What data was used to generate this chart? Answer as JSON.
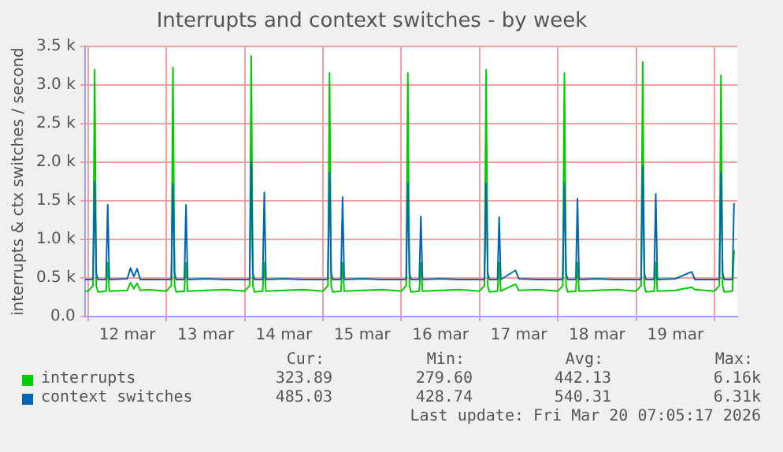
{
  "chart_data": {
    "type": "line",
    "title": "Interrupts and context switches - by week",
    "ylabel": "interrupts & ctx switches / second",
    "x": [
      "2026-03-11T23:00",
      "2026-03-12T00:00",
      "2026-03-12T01:30",
      "2026-03-12T02:00",
      "2026-03-12T02:30",
      "2026-03-12T03:00",
      "2026-03-12T05:30",
      "2026-03-12T06:00",
      "2026-03-12T06:30",
      "2026-03-12T12:00",
      "2026-03-12T13:00",
      "2026-03-12T14:00",
      "2026-03-12T15:00",
      "2026-03-12T16:00",
      "2026-03-12T18:00",
      "2026-03-13T00:00",
      "2026-03-13T01:30",
      "2026-03-13T02:00",
      "2026-03-13T02:30",
      "2026-03-13T03:00",
      "2026-03-13T05:30",
      "2026-03-13T06:00",
      "2026-03-13T06:30",
      "2026-03-13T12:00",
      "2026-03-13T18:00",
      "2026-03-14T00:00",
      "2026-03-14T01:30",
      "2026-03-14T02:00",
      "2026-03-14T02:30",
      "2026-03-14T03:00",
      "2026-03-14T05:30",
      "2026-03-14T06:00",
      "2026-03-14T06:30",
      "2026-03-14T12:00",
      "2026-03-14T18:00",
      "2026-03-15T00:00",
      "2026-03-15T01:30",
      "2026-03-15T02:00",
      "2026-03-15T02:30",
      "2026-03-15T03:00",
      "2026-03-15T05:30",
      "2026-03-15T06:00",
      "2026-03-15T06:30",
      "2026-03-15T12:00",
      "2026-03-15T18:00",
      "2026-03-16T00:00",
      "2026-03-16T01:30",
      "2026-03-16T02:00",
      "2026-03-16T02:30",
      "2026-03-16T03:00",
      "2026-03-16T05:30",
      "2026-03-16T06:00",
      "2026-03-16T06:30",
      "2026-03-16T12:00",
      "2026-03-16T18:00",
      "2026-03-17T00:00",
      "2026-03-17T01:30",
      "2026-03-17T02:00",
      "2026-03-17T02:30",
      "2026-03-17T03:00",
      "2026-03-17T05:30",
      "2026-03-17T06:00",
      "2026-03-17T06:30",
      "2026-03-17T11:00",
      "2026-03-17T12:00",
      "2026-03-17T18:00",
      "2026-03-18T00:00",
      "2026-03-18T01:30",
      "2026-03-18T02:00",
      "2026-03-18T02:30",
      "2026-03-18T03:00",
      "2026-03-18T05:30",
      "2026-03-18T06:00",
      "2026-03-18T06:30",
      "2026-03-18T12:00",
      "2026-03-18T18:00",
      "2026-03-19T00:00",
      "2026-03-19T01:30",
      "2026-03-19T02:00",
      "2026-03-19T02:30",
      "2026-03-19T03:00",
      "2026-03-19T05:30",
      "2026-03-19T06:00",
      "2026-03-19T06:30",
      "2026-03-19T12:00",
      "2026-03-19T17:00",
      "2026-03-19T18:00",
      "2026-03-20T00:00",
      "2026-03-20T01:30",
      "2026-03-20T02:00",
      "2026-03-20T02:30",
      "2026-03-20T03:00",
      "2026-03-20T05:30",
      "2026-03-20T06:00"
    ],
    "series": [
      {
        "name": "interrupts",
        "color": "#00cc00",
        "values": [
          330,
          330,
          400,
          3200,
          400,
          320,
          330,
          700,
          330,
          340,
          440,
          360,
          430,
          340,
          350,
          330,
          400,
          3230,
          400,
          320,
          330,
          700,
          330,
          340,
          350,
          330,
          400,
          3380,
          400,
          320,
          330,
          700,
          330,
          340,
          350,
          330,
          400,
          3160,
          400,
          320,
          330,
          700,
          330,
          340,
          350,
          330,
          400,
          3160,
          400,
          320,
          330,
          700,
          330,
          340,
          350,
          330,
          400,
          3200,
          400,
          320,
          330,
          700,
          330,
          420,
          340,
          350,
          330,
          400,
          3160,
          400,
          320,
          330,
          700,
          330,
          340,
          350,
          330,
          400,
          3300,
          400,
          320,
          330,
          700,
          330,
          340,
          380,
          350,
          330,
          400,
          3130,
          400,
          320,
          330,
          860
        ]
      },
      {
        "name": "context switches",
        "color": "#0066b3",
        "values": [
          480,
          480,
          480,
          1750,
          560,
          480,
          480,
          1450,
          480,
          490,
          630,
          520,
          620,
          480,
          480,
          480,
          480,
          1720,
          560,
          480,
          480,
          1450,
          480,
          490,
          480,
          480,
          480,
          2000,
          560,
          480,
          480,
          1610,
          480,
          490,
          480,
          480,
          480,
          1870,
          560,
          480,
          480,
          1550,
          480,
          490,
          480,
          480,
          480,
          1730,
          560,
          480,
          480,
          1300,
          480,
          490,
          480,
          480,
          480,
          1730,
          560,
          480,
          480,
          1290,
          480,
          600,
          490,
          480,
          480,
          480,
          1730,
          560,
          480,
          480,
          1530,
          480,
          490,
          480,
          480,
          480,
          1950,
          560,
          480,
          480,
          1590,
          480,
          490,
          580,
          480,
          480,
          480,
          1870,
          560,
          480,
          480,
          1470
        ]
      }
    ],
    "xlim": [
      "2026-03-11T23:00",
      "2026-03-20T07:00"
    ],
    "xticks": [
      {
        "value": "2026-03-12",
        "label": null
      },
      {
        "value": "2026-03-12T12:00",
        "label": "12 mar"
      },
      {
        "value": "2026-03-13",
        "label": null
      },
      {
        "value": "2026-03-13T12:00",
        "label": "13 mar"
      },
      {
        "value": "2026-03-14",
        "label": null
      },
      {
        "value": "2026-03-14T12:00",
        "label": "14 mar"
      },
      {
        "value": "2026-03-15",
        "label": null
      },
      {
        "value": "2026-03-15T12:00",
        "label": "15 mar"
      },
      {
        "value": "2026-03-16",
        "label": null
      },
      {
        "value": "2026-03-16T12:00",
        "label": "16 mar"
      },
      {
        "value": "2026-03-17",
        "label": null
      },
      {
        "value": "2026-03-17T12:00",
        "label": "17 mar"
      },
      {
        "value": "2026-03-18",
        "label": null
      },
      {
        "value": "2026-03-18T12:00",
        "label": "18 mar"
      },
      {
        "value": "2026-03-19",
        "label": null
      },
      {
        "value": "2026-03-19T12:00",
        "label": "19 mar"
      },
      {
        "value": "2026-03-20",
        "label": null
      }
    ],
    "ylim": [
      0,
      3500
    ],
    "yticks": [
      {
        "value": 0,
        "label": "0.0"
      },
      {
        "value": 500,
        "label": "0.5 k"
      },
      {
        "value": 1000,
        "label": "1.0 k"
      },
      {
        "value": 1500,
        "label": "1.5 k"
      },
      {
        "value": 2000,
        "label": "2.0 k"
      },
      {
        "value": 2500,
        "label": "2.5 k"
      },
      {
        "value": 3000,
        "label": "3.0 k"
      },
      {
        "value": 3500,
        "label": "3.5 k"
      }
    ],
    "grid": true,
    "legend": "bottom",
    "marker": "none",
    "line_style": "solid",
    "annotations": [
      "Cur:",
      "Min:",
      "Avg:",
      "Max:",
      "323.89",
      "279.60",
      "442.13",
      "6.16k",
      "485.03",
      "428.74",
      "540.31",
      "6.31k",
      "Last update: Fri Mar 20 07:05:17 2026"
    ]
  }
}
